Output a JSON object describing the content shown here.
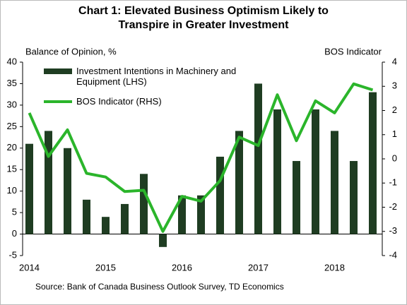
{
  "chart_data": {
    "type": "bar-line",
    "title": "Chart 1: Elevated Business Optimism Likely to Transpire in Greater Investment",
    "y_label": "Balance of Opinion, %",
    "y2_label": "BOS Indicator",
    "source": "Source: Bank of Canada Business Outlook Survey, TD Economics",
    "categories": [
      "2014",
      null,
      null,
      null,
      "2015",
      null,
      null,
      null,
      "2016",
      null,
      null,
      null,
      "2017",
      null,
      null,
      null,
      "2018",
      null,
      null
    ],
    "series": [
      {
        "name": "Investment Intentions in Machinery and Equipment (LHS)",
        "type": "bar",
        "color": "#1f3d22",
        "values": [
          21,
          24,
          20,
          8,
          4,
          7,
          14,
          -3,
          9,
          9,
          18,
          24,
          35,
          29,
          17,
          29,
          24,
          17,
          33
        ]
      },
      {
        "name": "BOS Indicator (RHS)",
        "type": "line",
        "axis": "y2",
        "color": "#2bb52b",
        "values": [
          1.9,
          0.1,
          1.2,
          -0.6,
          -0.75,
          -1.35,
          -1.3,
          -3.0,
          -1.55,
          -1.75,
          -0.9,
          0.9,
          0.55,
          2.65,
          0.75,
          2.4,
          1.9,
          3.1,
          2.85
        ]
      }
    ],
    "ylim": [
      -5,
      40
    ],
    "yticks": [
      -5,
      0,
      5,
      10,
      15,
      20,
      25,
      30,
      35,
      40
    ],
    "y2lim": [
      -4,
      4
    ],
    "y2ticks": [
      -4,
      -3,
      -2,
      -1,
      0,
      1,
      2,
      3,
      4
    ],
    "legend": "upper left"
  }
}
